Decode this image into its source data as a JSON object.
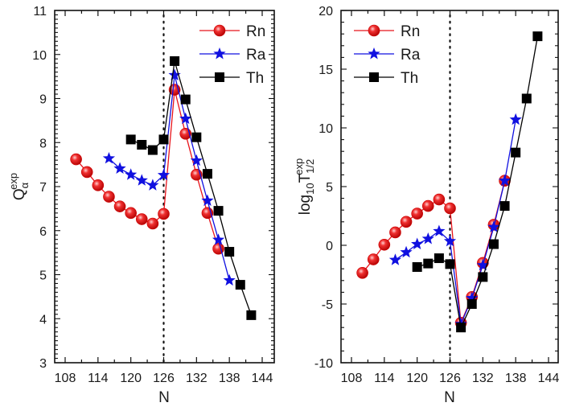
{
  "chart_data": [
    {
      "type": "line",
      "panel": "left",
      "title": "",
      "xlabel": "N",
      "ylabel": "Q_α^exp",
      "ylabel_parts": {
        "main": "Q",
        "sub": "α",
        "sup": "exp"
      },
      "xlim": [
        106,
        146
      ],
      "ylim": [
        3,
        11
      ],
      "xticks": [
        108,
        114,
        120,
        126,
        132,
        138,
        144
      ],
      "yticks": [
        3,
        4,
        5,
        6,
        7,
        8,
        9,
        10,
        11
      ],
      "xtick_labels": [
        "108",
        "114",
        "120",
        "126",
        "132",
        "138",
        "144"
      ],
      "ytick_labels": [
        "3",
        "4",
        "5",
        "6",
        "7",
        "8",
        "9",
        "10",
        "11"
      ],
      "grid": false,
      "reference_line": {
        "x": 126,
        "style": "dotted"
      },
      "legend": {
        "placement": "top-right"
      },
      "series": [
        {
          "name": "Rn",
          "color": "#e8141b",
          "marker": "circle",
          "x": [
            110,
            112,
            114,
            116,
            118,
            120,
            122,
            124,
            126,
            128,
            130,
            132,
            134,
            136
          ],
          "values": [
            7.62,
            7.33,
            7.03,
            6.77,
            6.55,
            6.4,
            6.26,
            6.16,
            6.38,
            9.2,
            8.2,
            7.27,
            6.4,
            5.59
          ]
        },
        {
          "name": "Ra",
          "color": "#1010e0",
          "marker": "star",
          "x": [
            116,
            118,
            120,
            122,
            124,
            126,
            128,
            130,
            132,
            134,
            136,
            138
          ],
          "values": [
            7.64,
            7.41,
            7.27,
            7.14,
            7.03,
            7.26,
            9.53,
            8.54,
            7.59,
            6.68,
            5.79,
            4.87
          ]
        },
        {
          "name": "Th",
          "color": "#000000",
          "marker": "square",
          "x": [
            120,
            122,
            124,
            126,
            128,
            130,
            132,
            134,
            136,
            138,
            140,
            142
          ],
          "values": [
            8.07,
            7.95,
            7.83,
            8.07,
            9.85,
            8.98,
            8.12,
            7.29,
            6.45,
            5.52,
            4.77,
            4.08
          ]
        }
      ]
    },
    {
      "type": "line",
      "panel": "right",
      "title": "",
      "xlabel": "N",
      "ylabel": "log10 T_1/2^exp",
      "ylabel_parts": {
        "main": "log",
        "sub1": "10",
        "main2": "T",
        "sub": "1/2",
        "sup": "exp"
      },
      "xlim": [
        106,
        146
      ],
      "ylim": [
        -10,
        20
      ],
      "xticks": [
        108,
        114,
        120,
        126,
        132,
        138,
        144
      ],
      "yticks": [
        -10,
        -5,
        0,
        5,
        10,
        15,
        20
      ],
      "xtick_labels": [
        "108",
        "114",
        "120",
        "126",
        "132",
        "138",
        "144"
      ],
      "ytick_labels": [
        "-10",
        "-5",
        "0",
        "5",
        "10",
        "15",
        "20"
      ],
      "grid": false,
      "reference_line": {
        "x": 126,
        "style": "dotted"
      },
      "legend": {
        "placement": "top-left"
      },
      "series": [
        {
          "name": "Rn",
          "color": "#e8141b",
          "marker": "circle",
          "x": [
            110,
            112,
            114,
            116,
            118,
            120,
            122,
            124,
            126,
            128,
            130,
            132,
            134,
            136
          ],
          "values": [
            -2.35,
            -1.2,
            0.05,
            1.1,
            2.0,
            2.7,
            3.35,
            3.9,
            3.15,
            -6.6,
            -4.4,
            -1.5,
            1.75,
            5.5
          ]
        },
        {
          "name": "Ra",
          "color": "#1010e0",
          "marker": "star",
          "x": [
            116,
            118,
            120,
            122,
            124,
            126,
            128,
            130,
            132,
            134,
            136,
            138
          ],
          "values": [
            -1.25,
            -0.6,
            0.1,
            0.55,
            1.2,
            0.35,
            -6.7,
            -4.5,
            -1.7,
            1.55,
            5.5,
            10.7
          ]
        },
        {
          "name": "Th",
          "color": "#000000",
          "marker": "square",
          "x": [
            120,
            122,
            124,
            126,
            128,
            130,
            132,
            134,
            136,
            138,
            140,
            142
          ],
          "values": [
            -1.85,
            -1.55,
            -1.1,
            -1.6,
            -7.0,
            -5.0,
            -2.7,
            0.1,
            3.35,
            7.9,
            12.5,
            17.8
          ]
        }
      ]
    }
  ]
}
